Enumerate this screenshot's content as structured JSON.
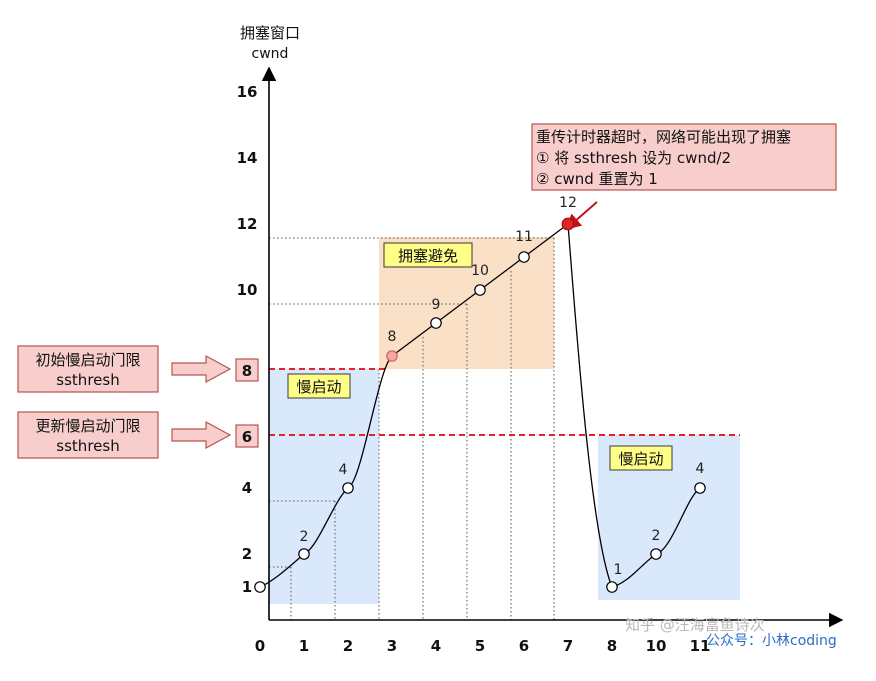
{
  "y_axis": {
    "title": "拥塞窗口",
    "unit": "cwnd"
  },
  "colors": {
    "slow_start_fill": "#dae8fc",
    "avoid_fill": "#fbe0c8",
    "label_fill": "#ffff88",
    "note_fill": "#f8cecc",
    "note_stroke": "#b85450",
    "threshold_line": "#e3222a",
    "peak_point": "#e3222a",
    "threshold_point": "#f4a6a6"
  },
  "zones": {
    "slow_start_1": "慢启动",
    "congestion_avoidance": "拥塞避免",
    "slow_start_2": "慢启动"
  },
  "annotation": {
    "line1": "重传计时器超时，网络可能出现了拥塞",
    "line2": "① 将 ssthresh 设为 cwnd/2",
    "line3": "② cwnd 重置为 1"
  },
  "threshold_labels": [
    {
      "line1": "初始慢启动门限",
      "line2": "ssthresh",
      "value": "8"
    },
    {
      "line1": "更新慢启动门限",
      "line2": "ssthresh",
      "value": "6"
    }
  ],
  "watermark": {
    "text1": "知乎 @汪海富鱼诗次",
    "text2": "公众号：小林coding"
  },
  "chart_data": {
    "type": "line",
    "title": "",
    "xlabel": "",
    "ylabel": "拥塞窗口 cwnd",
    "x_ticks": [
      "0",
      "1",
      "2",
      "3",
      "4",
      "5",
      "6",
      "7",
      "8",
      "10",
      "11"
    ],
    "y_ticks": [
      "1",
      "2",
      "4",
      "6",
      "8",
      "10",
      "12",
      "14",
      "16"
    ],
    "ylim": [
      0,
      16
    ],
    "grid": false,
    "series": [
      {
        "points": [
          {
            "x": 0,
            "y": 1
          },
          {
            "x": 1,
            "y": 2,
            "label": "2"
          },
          {
            "x": 2,
            "y": 4,
            "label": "4"
          },
          {
            "x": 3,
            "y": 8,
            "label": "8"
          },
          {
            "x": 4,
            "y": 9,
            "label": "9"
          },
          {
            "x": 5,
            "y": 10,
            "label": "10"
          },
          {
            "x": 6,
            "y": 11,
            "label": "11"
          },
          {
            "x": 7,
            "y": 12,
            "label": "12"
          },
          {
            "x": 8,
            "y": 1,
            "label": "1"
          },
          {
            "x": 10,
            "y": 2,
            "label": "2"
          },
          {
            "x": 11,
            "y": 4,
            "label": "4"
          }
        ]
      }
    ],
    "ssthresh_initial": 8,
    "ssthresh_updated": 6
  }
}
